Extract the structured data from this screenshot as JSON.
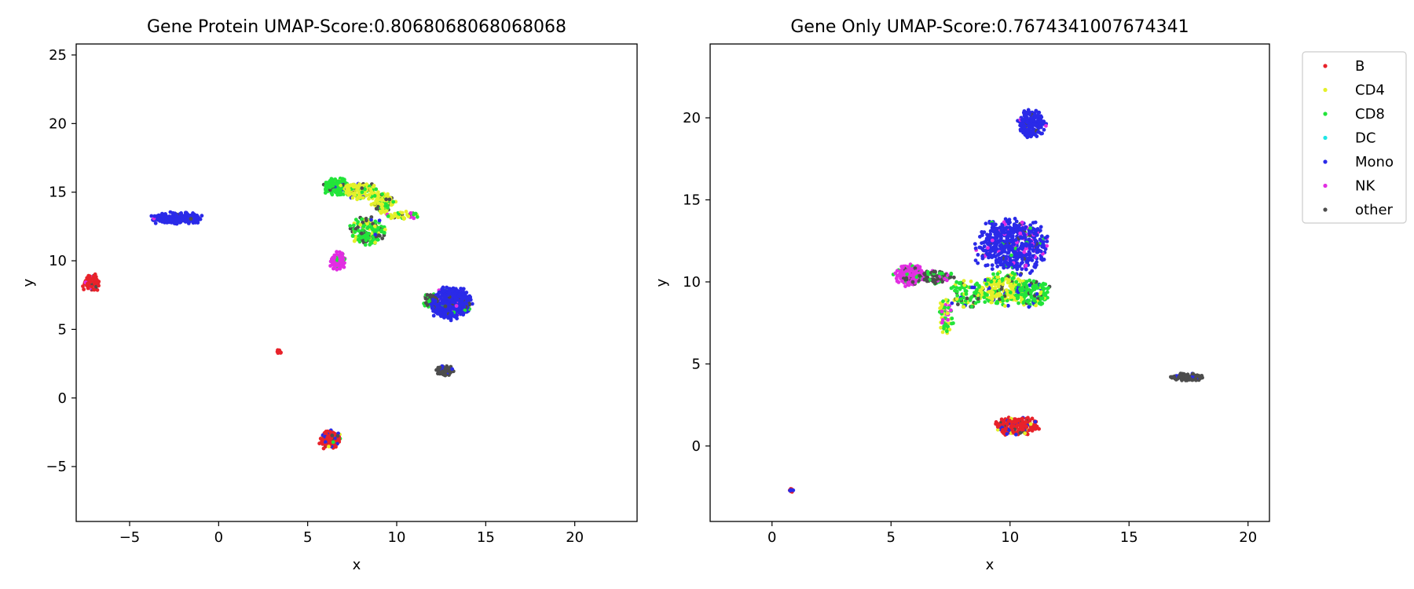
{
  "chart_data": [
    {
      "type": "scatter",
      "title": "Gene Protein UMAP-Score:0.8068068068068068",
      "xlabel": "x",
      "ylabel": "y",
      "xlim": [
        -8,
        23.5
      ],
      "ylim": [
        -9,
        25.8
      ],
      "xticks": [
        -5,
        0,
        5,
        10,
        15,
        20
      ],
      "yticks": [
        -5,
        0,
        5,
        10,
        15,
        20,
        25
      ],
      "xtick_labels": [
        "−5",
        "0",
        "5",
        "10",
        "15",
        "20"
      ],
      "ytick_labels": [
        "−5",
        "0",
        "5",
        "10",
        "15",
        "20",
        "25"
      ],
      "grid": false,
      "clusters": [
        {
          "cx": -2.3,
          "cy": 13.1,
          "rx": 1.4,
          "ry": 0.4,
          "n": 200,
          "mix": {
            "Mono": 0.95,
            "NK": 0.03,
            "other": 0.02
          }
        },
        {
          "cx": -7.1,
          "cy": 8.4,
          "rx": 0.45,
          "ry": 0.6,
          "n": 70,
          "mix": {
            "B": 0.85,
            "NK": 0.07,
            "other": 0.08
          }
        },
        {
          "cx": 3.4,
          "cy": 3.4,
          "rx": 0.12,
          "ry": 0.15,
          "n": 12,
          "mix": {
            "B": 1.0
          }
        },
        {
          "cx": 6.6,
          "cy": 15.4,
          "rx": 0.65,
          "ry": 0.55,
          "n": 160,
          "mix": {
            "CD8": 0.8,
            "CD4": 0.08,
            "Mono": 0.06,
            "other": 0.06
          }
        },
        {
          "cx": 8.0,
          "cy": 15.1,
          "rx": 0.9,
          "ry": 0.55,
          "n": 150,
          "mix": {
            "CD4": 0.72,
            "CD8": 0.18,
            "other": 0.06,
            "Mono": 0.04
          }
        },
        {
          "cx": 9.2,
          "cy": 14.2,
          "rx": 0.6,
          "ry": 0.7,
          "n": 110,
          "mix": {
            "CD4": 0.6,
            "CD8": 0.25,
            "other": 0.15
          }
        },
        {
          "cx": 10.4,
          "cy": 13.3,
          "rx": 0.9,
          "ry": 0.25,
          "n": 50,
          "mix": {
            "CD4": 0.5,
            "CD8": 0.25,
            "NK": 0.15,
            "other": 0.1
          }
        },
        {
          "cx": 8.3,
          "cy": 12.2,
          "rx": 0.9,
          "ry": 1.0,
          "n": 170,
          "mix": {
            "CD8": 0.62,
            "other": 0.23,
            "CD4": 0.1,
            "Mono": 0.05
          }
        },
        {
          "cx": 6.7,
          "cy": 10.0,
          "rx": 0.4,
          "ry": 0.6,
          "n": 110,
          "mix": {
            "NK": 0.85,
            "CD8": 0.1,
            "other": 0.05
          }
        },
        {
          "cx": 13.0,
          "cy": 6.9,
          "rx": 1.1,
          "ry": 1.0,
          "n": 560,
          "mix": {
            "Mono": 0.9,
            "NK": 0.03,
            "CD8": 0.03,
            "other": 0.04
          }
        },
        {
          "cx": 11.9,
          "cy": 7.1,
          "rx": 0.35,
          "ry": 0.6,
          "n": 40,
          "mix": {
            "other": 0.55,
            "Mono": 0.3,
            "CD8": 0.15
          }
        },
        {
          "cx": 12.7,
          "cy": 2.0,
          "rx": 0.45,
          "ry": 0.35,
          "n": 80,
          "mix": {
            "other": 0.85,
            "Mono": 0.15
          }
        },
        {
          "cx": 6.3,
          "cy": -3.0,
          "rx": 0.55,
          "ry": 0.6,
          "n": 140,
          "mix": {
            "B": 0.72,
            "Mono": 0.14,
            "CD4": 0.05,
            "CD8": 0.05,
            "other": 0.04
          }
        }
      ]
    },
    {
      "type": "scatter",
      "title": "Gene Only UMAP-Score:0.7674341007674341",
      "xlabel": "x",
      "ylabel": "y",
      "xlim": [
        -2.6,
        20.9
      ],
      "ylim": [
        -4.6,
        24.5
      ],
      "xticks": [
        0,
        5,
        10,
        15,
        20
      ],
      "yticks": [
        0,
        5,
        10,
        15,
        20
      ],
      "xtick_labels": [
        "0",
        "5",
        "10",
        "15",
        "20"
      ],
      "ytick_labels": [
        "0",
        "5",
        "10",
        "15",
        "20"
      ],
      "grid": false,
      "clusters": [
        {
          "cx": 10.9,
          "cy": 19.6,
          "rx": 0.5,
          "ry": 0.8,
          "n": 200,
          "mix": {
            "Mono": 0.96,
            "NK": 0.02,
            "other": 0.02
          }
        },
        {
          "cx": 10.1,
          "cy": 12.2,
          "rx": 1.4,
          "ry": 1.5,
          "n": 560,
          "mix": {
            "Mono": 0.88,
            "NK": 0.06,
            "CD8": 0.03,
            "other": 0.03
          }
        },
        {
          "cx": 9.7,
          "cy": 9.6,
          "rx": 0.9,
          "ry": 0.9,
          "n": 220,
          "mix": {
            "CD4": 0.6,
            "CD8": 0.28,
            "Mono": 0.07,
            "other": 0.05
          }
        },
        {
          "cx": 10.9,
          "cy": 9.3,
          "rx": 0.7,
          "ry": 0.8,
          "n": 160,
          "mix": {
            "CD8": 0.75,
            "CD4": 0.12,
            "Mono": 0.08,
            "other": 0.05
          }
        },
        {
          "cx": 5.8,
          "cy": 10.4,
          "rx": 0.6,
          "ry": 0.6,
          "n": 180,
          "mix": {
            "NK": 0.75,
            "CD8": 0.15,
            "other": 0.1
          }
        },
        {
          "cx": 6.9,
          "cy": 10.3,
          "rx": 0.6,
          "ry": 0.35,
          "n": 90,
          "mix": {
            "other": 0.55,
            "CD8": 0.3,
            "NK": 0.15
          }
        },
        {
          "cx": 8.2,
          "cy": 9.2,
          "rx": 0.8,
          "ry": 0.9,
          "n": 100,
          "mix": {
            "CD8": 0.6,
            "CD4": 0.2,
            "other": 0.15,
            "Mono": 0.05
          }
        },
        {
          "cx": 7.3,
          "cy": 7.9,
          "rx": 0.3,
          "ry": 0.9,
          "n": 60,
          "mix": {
            "CD8": 0.45,
            "CD4": 0.3,
            "NK": 0.25
          }
        },
        {
          "cx": 10.3,
          "cy": 1.2,
          "rx": 0.9,
          "ry": 0.55,
          "n": 180,
          "mix": {
            "B": 0.8,
            "Mono": 0.1,
            "CD4": 0.04,
            "other": 0.06
          }
        },
        {
          "cx": 17.5,
          "cy": 4.2,
          "rx": 0.65,
          "ry": 0.2,
          "n": 120,
          "mix": {
            "other": 0.95,
            "Mono": 0.05
          }
        },
        {
          "cx": 0.8,
          "cy": -2.7,
          "rx": 0.1,
          "ry": 0.08,
          "n": 14,
          "mix": {
            "Mono": 0.5,
            "B": 0.5
          }
        }
      ]
    }
  ],
  "legend": {
    "placement": "upper-right-outside",
    "entries": [
      {
        "name": "B",
        "color": "#e8222a"
      },
      {
        "name": "CD4",
        "color": "#e4f02a"
      },
      {
        "name": "CD8",
        "color": "#22e43a"
      },
      {
        "name": "DC",
        "color": "#1fe6e6"
      },
      {
        "name": "Mono",
        "color": "#2a2ae8"
      },
      {
        "name": "NK",
        "color": "#e22ee2"
      },
      {
        "name": "other",
        "color": "#4d4d4d"
      }
    ]
  }
}
